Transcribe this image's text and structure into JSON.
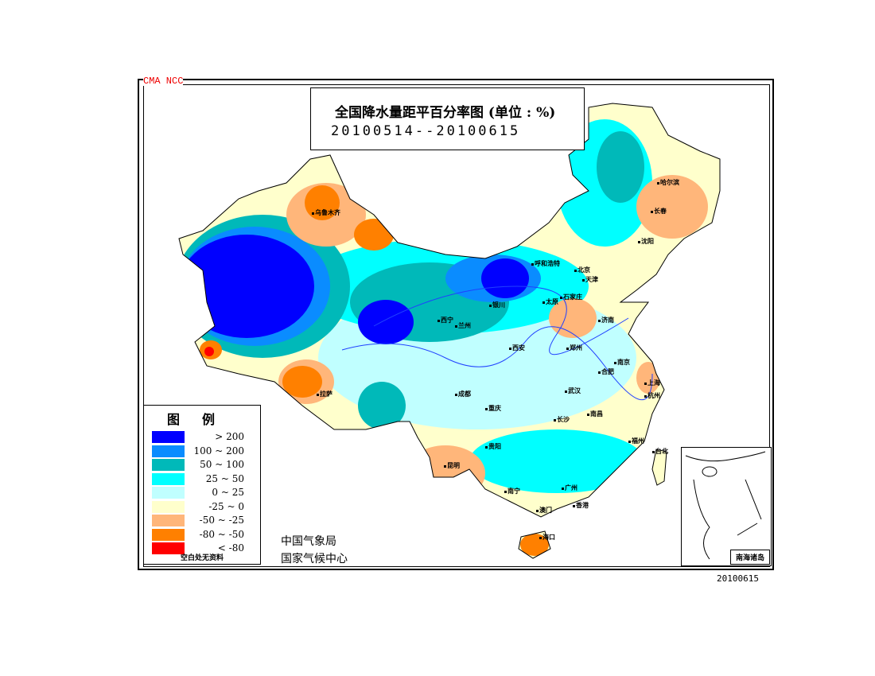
{
  "watermark": "CMA  NCC",
  "title": "全国降水量距平百分率图 (单位 : %)",
  "date_range": "20100514--20100615",
  "legend": {
    "title": "图例",
    "items": [
      {
        "label": "> 200",
        "color": "#0000ff"
      },
      {
        "label": "100 ~ 200",
        "color": "#0a8cff"
      },
      {
        "label": "50 ~ 100",
        "color": "#00b9b9"
      },
      {
        "label": "25 ~ 50",
        "color": "#00ffff"
      },
      {
        "label": "0 ~ 25",
        "color": "#c0ffff"
      },
      {
        "label": "-25 ~ 0",
        "color": "#ffffcc"
      },
      {
        "label": "-50 ~ -25",
        "color": "#ffb67a"
      },
      {
        "label": "-80 ~ -50",
        "color": "#ff8000"
      },
      {
        "label": "< -80",
        "color": "#ff0000"
      }
    ],
    "note": "空白处无资料"
  },
  "agency": [
    "中国气象局",
    "国家气候中心"
  ],
  "cities": [
    "乌鲁木齐",
    "拉萨",
    "西宁",
    "兰州",
    "银川",
    "呼和浩特",
    "北京",
    "天津",
    "太原",
    "石家庄",
    "济南",
    "郑州",
    "西安",
    "成都",
    "重庆",
    "贵阳",
    "昆明",
    "南宁",
    "广州",
    "澳门",
    "香港",
    "海口",
    "长沙",
    "武汉",
    "南昌",
    "合肥",
    "南京",
    "上海",
    "杭州",
    "福州",
    "台北",
    "哈尔滨",
    "长春",
    "沈阳"
  ],
  "inset_label": "南海诸岛",
  "footer_date": "20100615"
}
